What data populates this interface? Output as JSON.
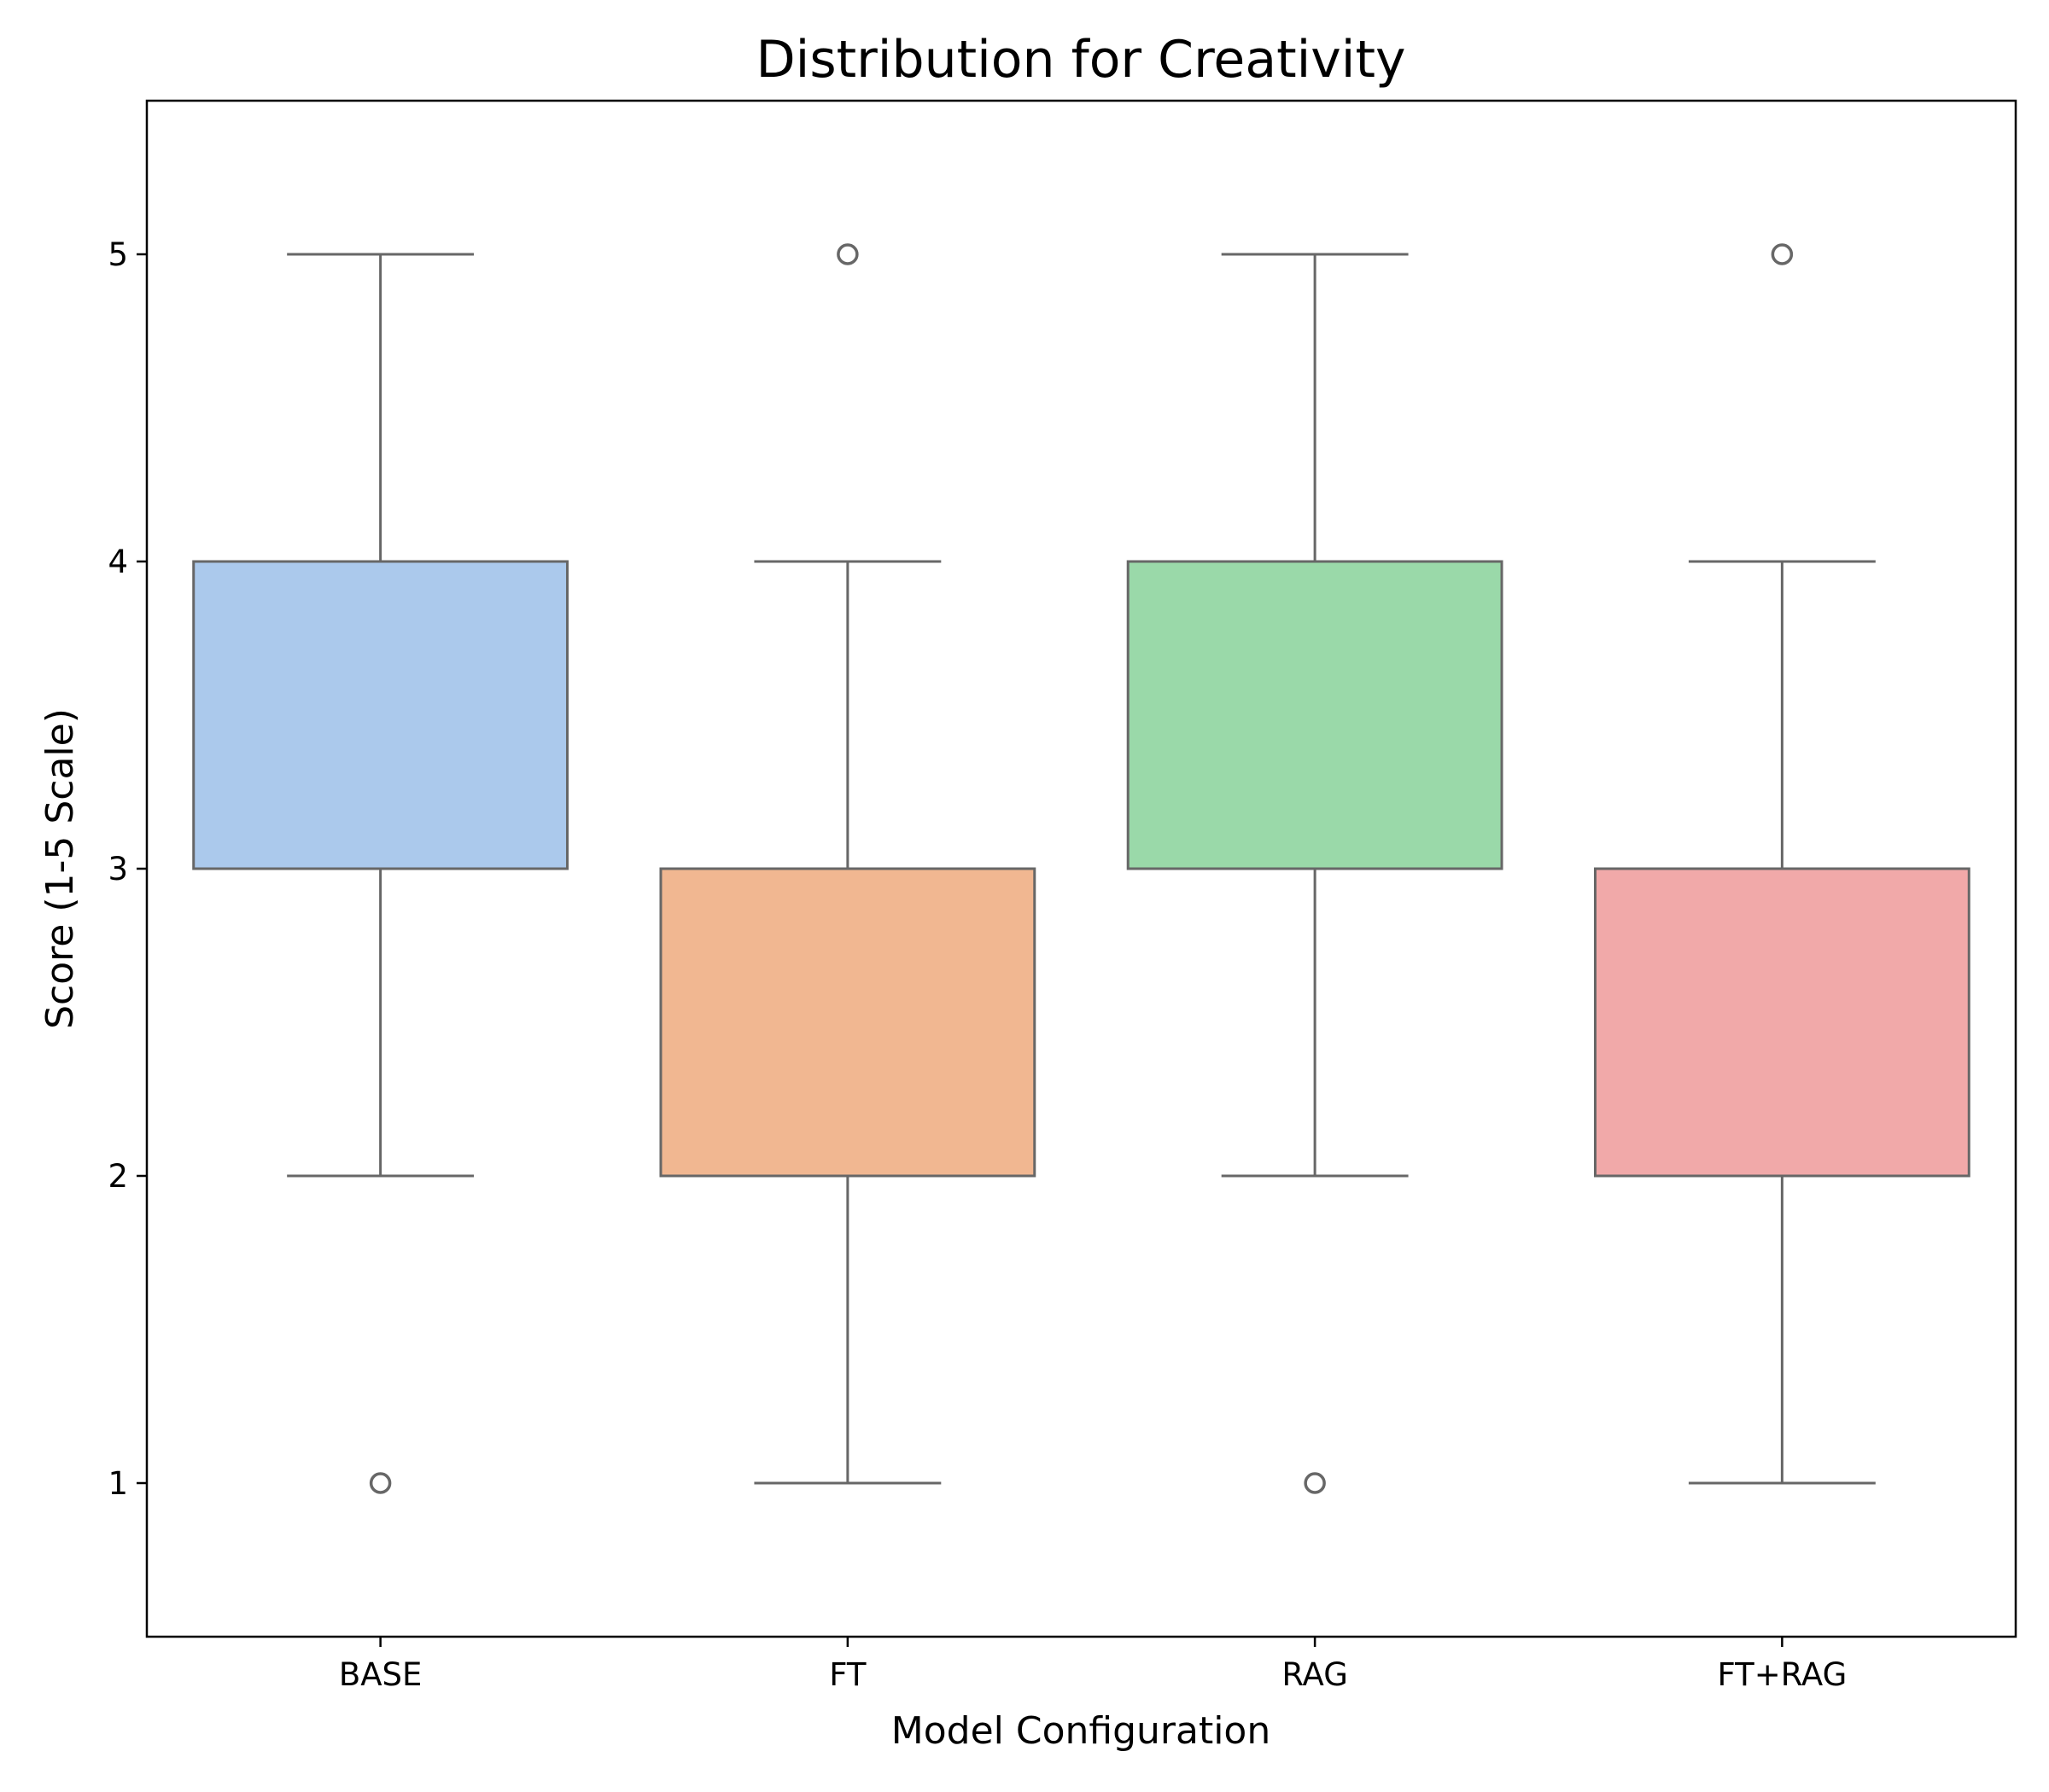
{
  "chart_data": {
    "type": "box",
    "title": "Distribution for Creativity",
    "xlabel": "Model Configuration",
    "ylabel": "Score (1-5 Scale)",
    "ylim": [
      0.5,
      5.5
    ],
    "yticks": [
      1,
      2,
      3,
      4,
      5
    ],
    "grid": false,
    "categories": [
      "BASE",
      "FT",
      "RAG",
      "FT+RAG"
    ],
    "boxes": [
      {
        "category": "BASE",
        "whisker_low": 2,
        "q1": 3,
        "median": 3,
        "q3": 4,
        "whisker_high": 5,
        "outliers": [
          1
        ],
        "color": "#abc9ec"
      },
      {
        "category": "FT",
        "whisker_low": 1,
        "q1": 2,
        "median": 3,
        "q3": 3,
        "whisker_high": 4,
        "outliers": [
          5
        ],
        "color": "#f1b791"
      },
      {
        "category": "RAG",
        "whisker_low": 2,
        "q1": 3,
        "median": 3,
        "q3": 4,
        "whisker_high": 5,
        "outliers": [
          1
        ],
        "color": "#9ad9a9"
      },
      {
        "category": "FT+RAG",
        "whisker_low": 1,
        "q1": 2,
        "median": 3,
        "q3": 3,
        "whisker_high": 4,
        "outliers": [
          5
        ],
        "color": "#f1a9a9"
      }
    ],
    "line_color": "#676767"
  }
}
